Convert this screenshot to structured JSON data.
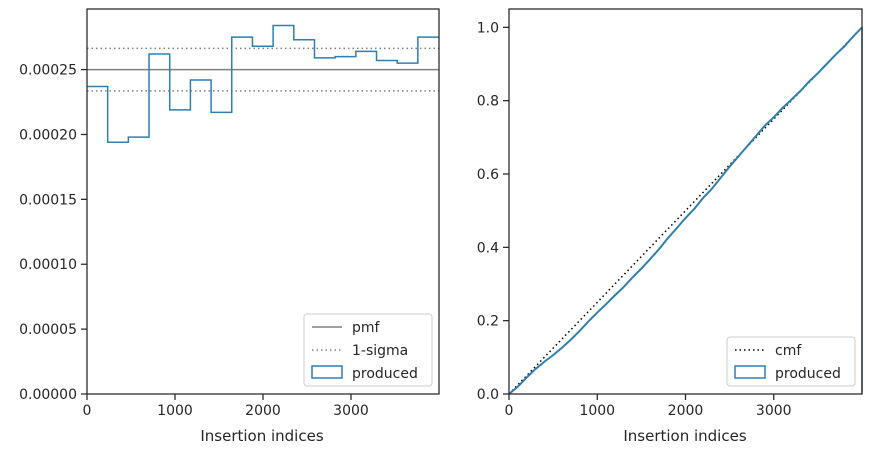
{
  "chart_data": [
    {
      "type": "step",
      "xlabel": "Insertion indices",
      "ylabel": "",
      "xlim": [
        0,
        4000
      ],
      "ylim": [
        0,
        0.0002967
      ],
      "xticks": [
        0,
        1000,
        2000,
        3000
      ],
      "xtick_labels": [
        "0",
        "1000",
        "2000",
        "3000"
      ],
      "yticks": [
        0,
        5e-05,
        0.0001,
        0.00015,
        0.0002,
        0.00025
      ],
      "ytick_labels": [
        "0.00000",
        "0.00005",
        "0.00010",
        "0.00015",
        "0.00020",
        "0.00025"
      ],
      "legend_position": "lower right",
      "legend": [
        "pmf",
        "1-sigma",
        "produced"
      ],
      "reference_lines": [
        {
          "name": "pmf",
          "y": 0.00025,
          "style": "solid",
          "color": "#808080"
        },
        {
          "name": "1-sigma",
          "y": 0.0002664,
          "style": "dotted",
          "color": "#808080"
        },
        {
          "name": "1-sigma",
          "y": 0.0002336,
          "style": "dotted",
          "color": "#808080"
        }
      ],
      "series": [
        {
          "name": "produced",
          "color": "#2f7fb2",
          "bin_edges": [
            0,
            235,
            470,
            705,
            940,
            1175,
            1410,
            1645,
            1880,
            2115,
            2350,
            2585,
            2820,
            3055,
            3290,
            3525,
            3760,
            4000
          ],
          "values": [
            0.000237,
            0.000194,
            0.000198,
            0.000262,
            0.000219,
            0.000242,
            0.000217,
            0.000275,
            0.000268,
            0.000284,
            0.000273,
            0.000259,
            0.00026,
            0.000264,
            0.000257,
            0.000255,
            0.000275
          ]
        }
      ]
    },
    {
      "type": "line",
      "xlabel": "Insertion indices",
      "ylabel": "",
      "xlim": [
        0,
        4000
      ],
      "ylim": [
        0,
        1.05
      ],
      "xticks": [
        0,
        1000,
        2000,
        3000
      ],
      "xtick_labels": [
        "0",
        "1000",
        "2000",
        "3000"
      ],
      "yticks": [
        0,
        0.2,
        0.4,
        0.6,
        0.8,
        1.0
      ],
      "ytick_labels": [
        "0.0",
        "0.2",
        "0.4",
        "0.6",
        "0.8",
        "1.0"
      ],
      "legend_position": "lower right",
      "legend": [
        "cmf",
        "produced"
      ],
      "series": [
        {
          "name": "cmf",
          "style": "dotted",
          "color": "#000000",
          "x": [
            0,
            4000
          ],
          "y": [
            0,
            1.0
          ]
        },
        {
          "name": "produced",
          "style": "solid",
          "color": "#2f7fb2",
          "x": [
            0,
            100,
            200,
            300,
            400,
            500,
            600,
            700,
            800,
            900,
            1000,
            1100,
            1200,
            1300,
            1400,
            1500,
            1600,
            1700,
            1800,
            1900,
            2000,
            2100,
            2200,
            2300,
            2400,
            2500,
            2600,
            2700,
            2800,
            2900,
            3000,
            3100,
            3200,
            3300,
            3400,
            3500,
            3600,
            3700,
            3800,
            3900,
            4000
          ],
          "y": [
            0,
            0.02,
            0.045,
            0.068,
            0.088,
            0.106,
            0.126,
            0.148,
            0.172,
            0.198,
            0.222,
            0.245,
            0.269,
            0.292,
            0.318,
            0.342,
            0.368,
            0.395,
            0.425,
            0.452,
            0.48,
            0.505,
            0.535,
            0.56,
            0.59,
            0.62,
            0.648,
            0.676,
            0.704,
            0.732,
            0.755,
            0.78,
            0.803,
            0.826,
            0.852,
            0.875,
            0.9,
            0.925,
            0.948,
            0.975,
            1.0
          ]
        }
      ]
    }
  ]
}
